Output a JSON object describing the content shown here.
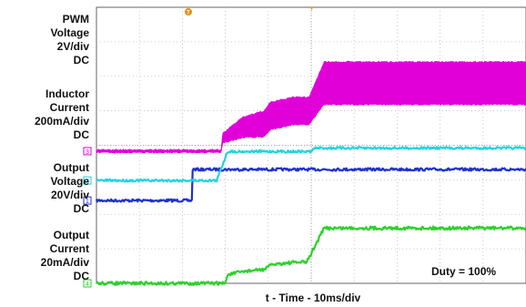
{
  "chart_data": {
    "type": "line",
    "title": "",
    "xlabel": "t - Time - 10ms/div",
    "x_unit_per_div": "10ms",
    "grid": true,
    "horizontal_divisions": 10,
    "vertical_divisions": 8,
    "annotation": "Duty = 100%",
    "trigger_marker": "T",
    "channels": [
      {
        "number": "1",
        "label_lines": [
          "PWM",
          "Voltage",
          "2V/div",
          "DC"
        ],
        "color": "#1f2fd0",
        "noise": 0.25,
        "points": [
          [
            0,
            2.4
          ],
          [
            2.22,
            2.4
          ],
          [
            2.24,
            3.3
          ],
          [
            10,
            3.3
          ]
        ]
      },
      {
        "number": "3",
        "label_lines": [
          "Inductor",
          "Current",
          "200mA/div",
          "DC"
        ],
        "color": "#e000d8",
        "band": true,
        "center": [
          [
            0,
            3.83
          ],
          [
            2.9,
            3.83
          ],
          [
            2.94,
            4.2
          ],
          [
            3.4,
            4.52
          ],
          [
            3.9,
            4.62
          ],
          [
            4.05,
            4.85
          ],
          [
            4.6,
            5.0
          ],
          [
            4.95,
            5.0
          ],
          [
            5.3,
            5.8
          ],
          [
            10,
            5.8
          ]
        ],
        "halfwidth": [
          [
            0,
            0.04
          ],
          [
            2.9,
            0.04
          ],
          [
            2.94,
            0.14
          ],
          [
            3.4,
            0.3
          ],
          [
            4.05,
            0.4
          ],
          [
            4.95,
            0.4
          ],
          [
            5.3,
            0.62
          ],
          [
            10,
            0.62
          ]
        ]
      },
      {
        "number": "2",
        "label_lines": [
          "Output",
          "Voltage",
          "20V/div",
          "DC"
        ],
        "color": "#22d4e0",
        "noise": 0.22,
        "points": [
          [
            0,
            2.98
          ],
          [
            2.8,
            2.98
          ],
          [
            3.05,
            3.82
          ],
          [
            5.0,
            3.82
          ],
          [
            5.08,
            3.92
          ],
          [
            10,
            3.92
          ]
        ]
      },
      {
        "number": "4",
        "label_lines": [
          "Output",
          "Current",
          "20mA/div",
          "DC"
        ],
        "color": "#2bd12b",
        "noise": 0.3,
        "points": [
          [
            0,
            0.0
          ],
          [
            3.0,
            0.0
          ],
          [
            3.05,
            0.25
          ],
          [
            3.45,
            0.35
          ],
          [
            3.9,
            0.4
          ],
          [
            4.1,
            0.55
          ],
          [
            4.55,
            0.6
          ],
          [
            4.9,
            0.62
          ],
          [
            5.3,
            1.6
          ],
          [
            10,
            1.6
          ]
        ]
      }
    ]
  }
}
